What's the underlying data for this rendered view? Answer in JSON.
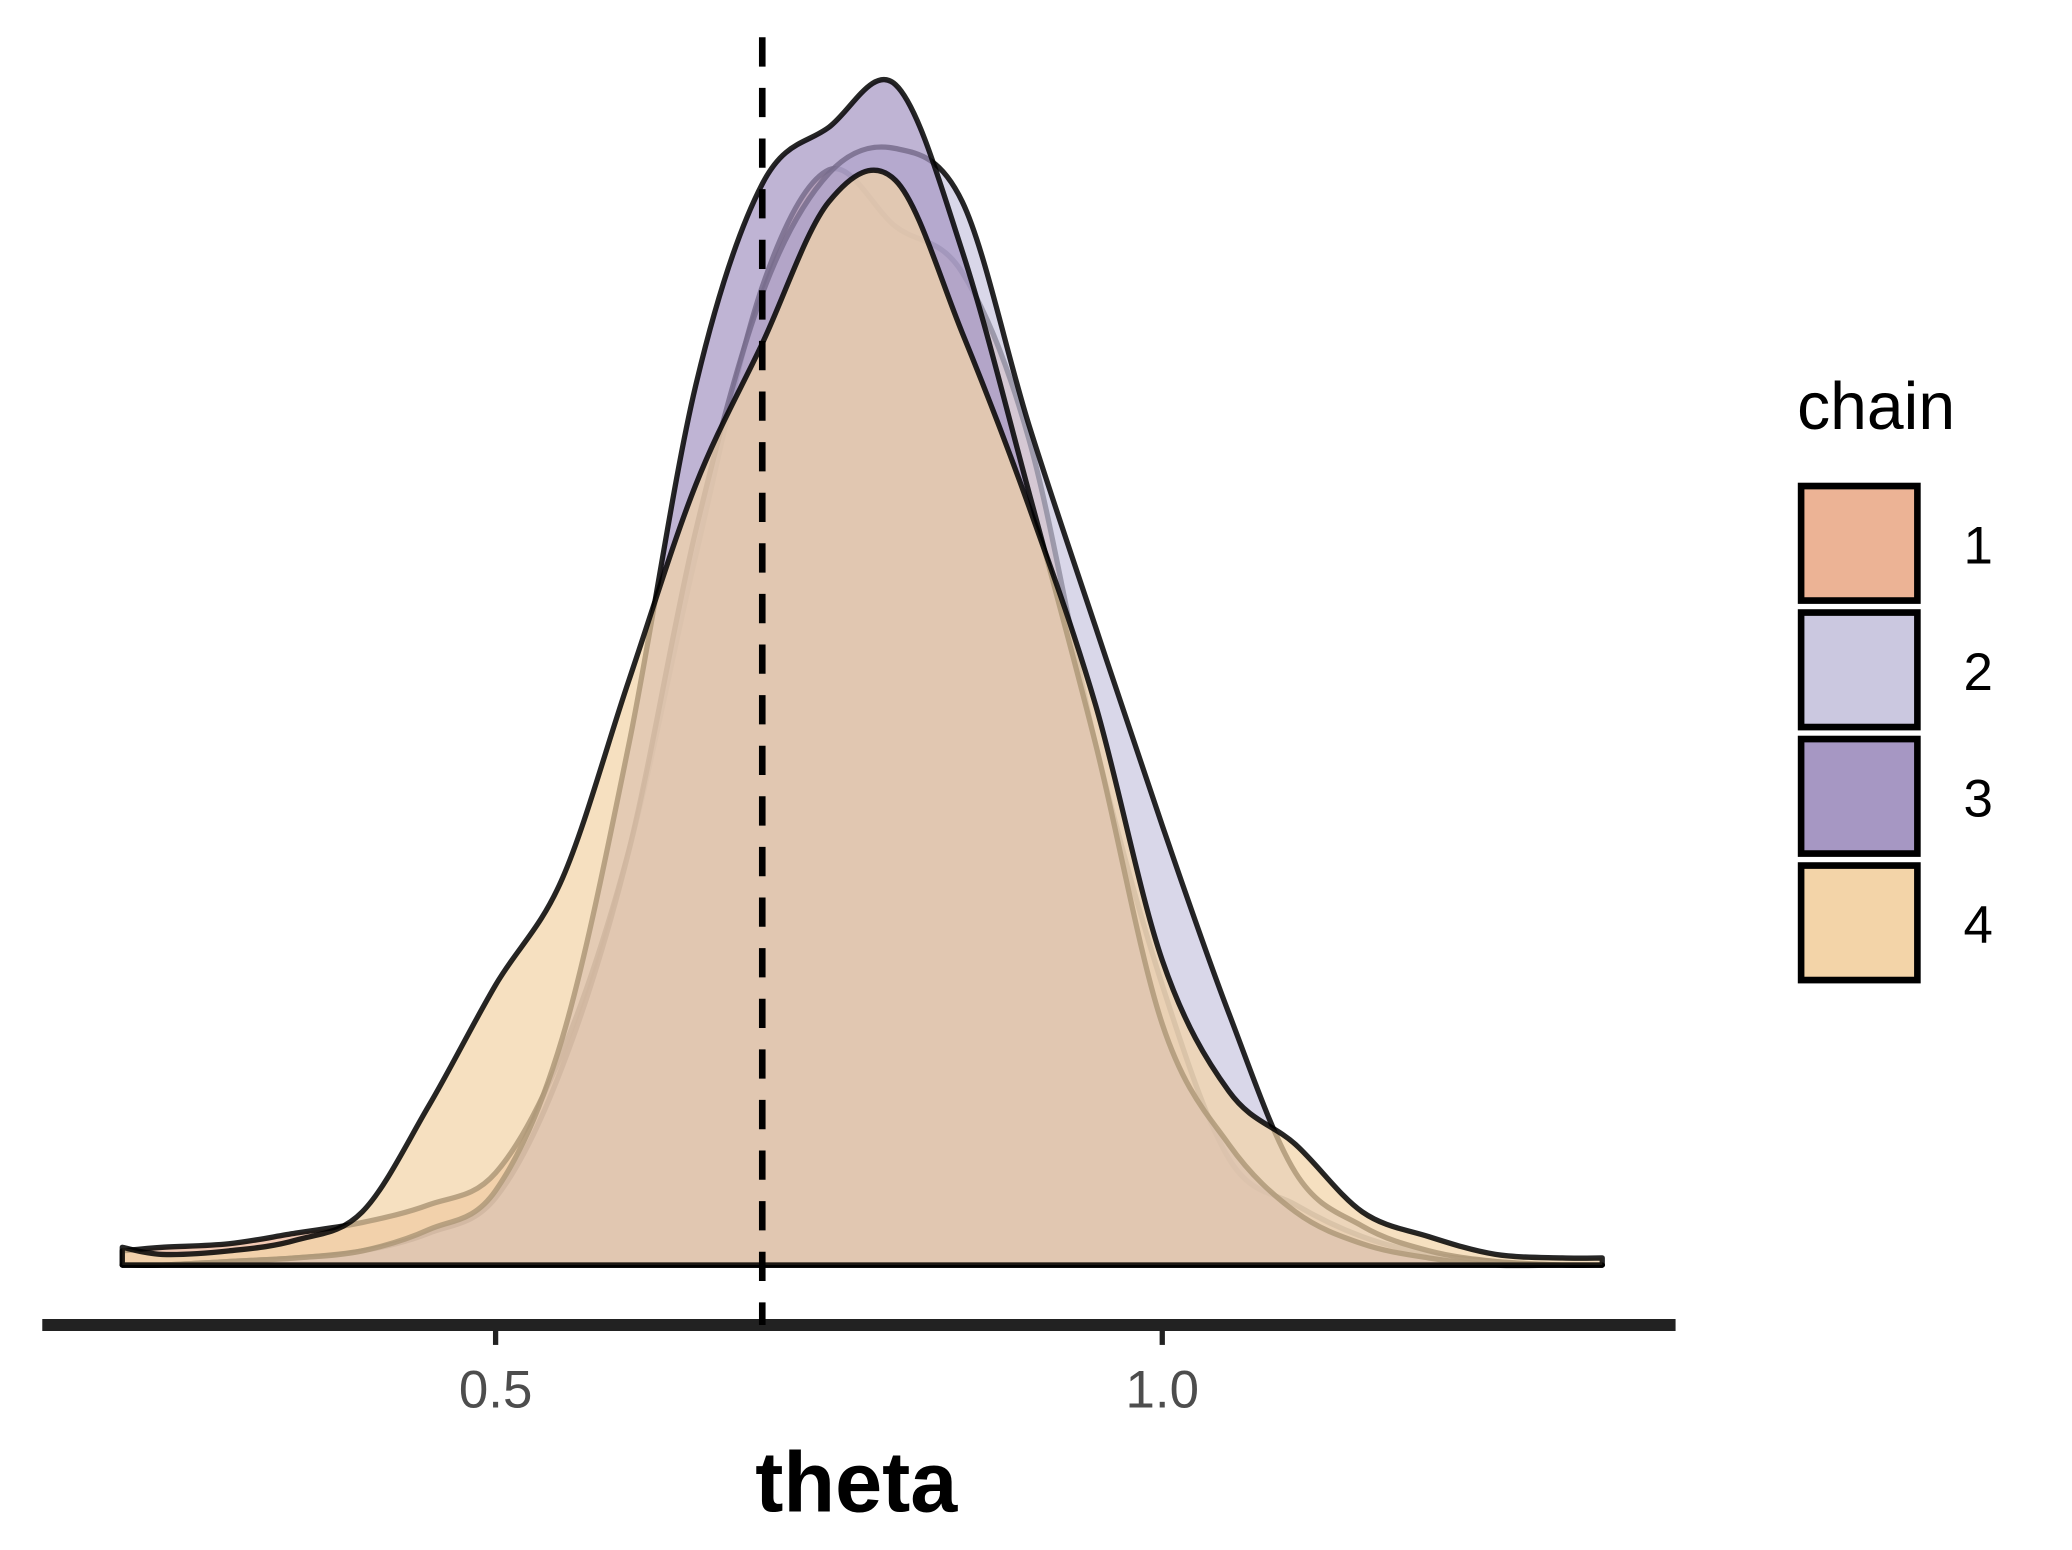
{
  "chart_data": {
    "type": "density",
    "x_label": "theta",
    "legend_title": "chain",
    "x": [
      0.22,
      0.25,
      0.3,
      0.35,
      0.4,
      0.45,
      0.5,
      0.55,
      0.6,
      0.65,
      0.7,
      0.75,
      0.8,
      0.85,
      0.9,
      0.95,
      1.0,
      1.05,
      1.1,
      1.15,
      1.2,
      1.25,
      1.3,
      1.33
    ],
    "series": [
      {
        "name": "1",
        "color": "#ecb395",
        "values": [
          0.04,
          0.05,
          0.06,
          0.09,
          0.12,
          0.17,
          0.26,
          0.6,
          1.17,
          2.0,
          2.76,
          3.09,
          2.93,
          2.8,
          2.33,
          1.47,
          0.79,
          0.3,
          0.17,
          0.08,
          0.03,
          0.01,
          0.0,
          0.0
        ]
      },
      {
        "name": "2",
        "color": "#cbc8e0",
        "values": [
          0.0,
          0.0,
          0.01,
          0.02,
          0.04,
          0.09,
          0.19,
          0.56,
          1.17,
          2.07,
          2.74,
          3.08,
          3.15,
          3.0,
          2.37,
          1.8,
          1.24,
          0.71,
          0.26,
          0.11,
          0.04,
          0.01,
          0.0,
          0.0
        ]
      },
      {
        "name": "3",
        "color": "#a697c3",
        "values": [
          0.0,
          0.0,
          0.01,
          0.02,
          0.04,
          0.1,
          0.21,
          0.64,
          1.47,
          2.48,
          3.05,
          3.21,
          3.33,
          2.86,
          2.18,
          1.47,
          0.68,
          0.34,
          0.15,
          0.06,
          0.02,
          0.0,
          0.0,
          0.0
        ]
      },
      {
        "name": "4",
        "color": "#f3d4a8",
        "values": [
          0.05,
          0.03,
          0.04,
          0.07,
          0.15,
          0.45,
          0.79,
          1.09,
          1.65,
          2.2,
          2.6,
          3.0,
          3.06,
          2.63,
          2.14,
          1.58,
          0.86,
          0.49,
          0.34,
          0.15,
          0.08,
          0.03,
          0.02,
          0.02
        ]
      }
    ],
    "vline": 0.7,
    "xlim": [
      0.16,
      1.385
    ],
    "ylim": [
      0,
      3.4
    ],
    "xticks": [
      {
        "value": 0.5,
        "label": "0.5"
      },
      {
        "value": 1.0,
        "label": "1.0"
      }
    ],
    "grid": false
  }
}
